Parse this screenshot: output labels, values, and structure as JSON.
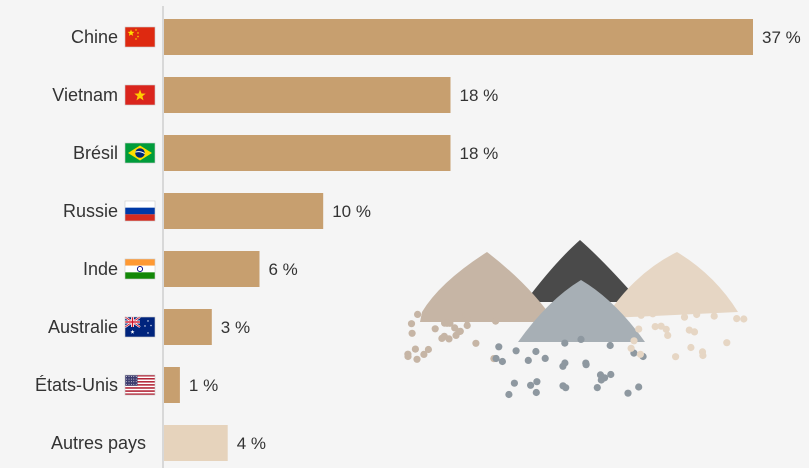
{
  "chart_data": {
    "type": "bar",
    "orientation": "horizontal",
    "categories": [
      "Chine",
      "Vietnam",
      "Brésil",
      "Russie",
      "Inde",
      "Australie",
      "États-Unis",
      "Autres pays"
    ],
    "values": [
      37,
      18,
      18,
      10,
      6,
      3,
      1,
      4
    ],
    "value_labels": [
      "37 %",
      "18 %",
      "18 %",
      "10 %",
      "6 %",
      "3 %",
      "1 %",
      "4 %"
    ],
    "flags": [
      "china-flag-icon",
      "vietnam-flag-icon",
      "brazil-flag-icon",
      "russia-flag-icon",
      "india-flag-icon",
      "australia-flag-icon",
      "usa-flag-icon",
      ""
    ],
    "xlim": [
      0,
      37
    ],
    "title": "",
    "xlabel": "",
    "ylabel": "",
    "grid": false,
    "colors": {
      "bar": "#c79f6f",
      "bar_other": "#e6d3bc",
      "text": "#333333",
      "axis": "#cfcfcf",
      "background": "#f5f5f5"
    },
    "decoration": "sand-piles-illustration"
  }
}
